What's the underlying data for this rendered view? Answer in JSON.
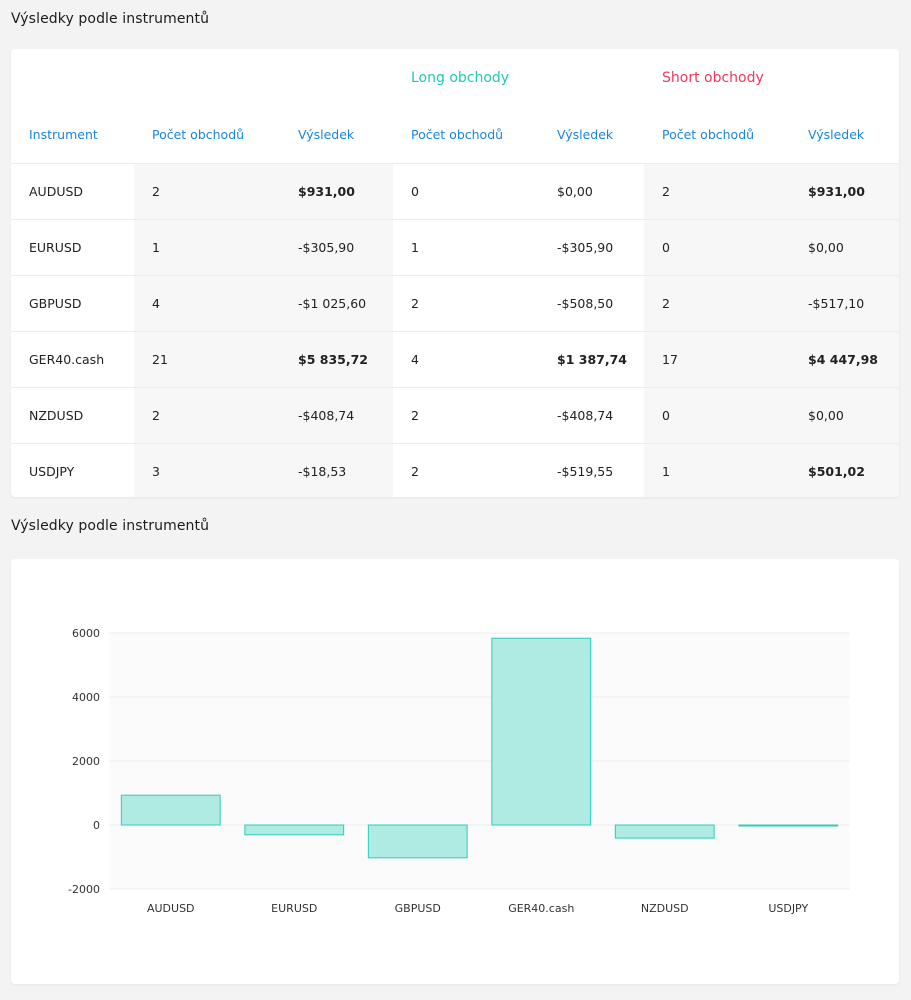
{
  "table_section": {
    "title": "Výsledky podle instrumentů",
    "group_long": "Long obchody",
    "group_short": "Short obchody",
    "headers": [
      "Instrument",
      "Počet obchodů",
      "Výsledek",
      "Počet obchodů",
      "Výsledek",
      "Počet obchodů",
      "Výsledek"
    ],
    "rows": [
      [
        "AUDUSD",
        "2",
        "$931,00",
        "0",
        "$0,00",
        "2",
        "$931,00"
      ],
      [
        "EURUSD",
        "1",
        "-$305,90",
        "1",
        "-$305,90",
        "0",
        "$0,00"
      ],
      [
        "GBPUSD",
        "4",
        "-$1 025,60",
        "2",
        "-$508,50",
        "2",
        "-$517,10"
      ],
      [
        "GER40.cash",
        "21",
        "$5 835,72",
        "4",
        "$1 387,74",
        "17",
        "$4 447,98"
      ],
      [
        "NZDUSD",
        "2",
        "-$408,74",
        "2",
        "-$408,74",
        "0",
        "$0,00"
      ],
      [
        "USDJPY",
        "3",
        "-$18,53",
        "2",
        "-$519,55",
        "1",
        "$501,02"
      ]
    ]
  },
  "chart_section": {
    "title": "Výsledky podle instrumentů"
  },
  "colors": {
    "positive": "#1fc9b1",
    "negative": "#f0385a",
    "header_blue": "#1a85e0",
    "bar_fill": "#b0ebe3",
    "bar_stroke": "#2ccdb9"
  },
  "chart_data": {
    "type": "bar",
    "categories": [
      "AUDUSD",
      "EURUSD",
      "GBPUSD",
      "GER40.cash",
      "NZDUSD",
      "USDJPY"
    ],
    "values": [
      931.0,
      -305.9,
      -1025.6,
      5835.72,
      -408.74,
      -18.53
    ],
    "yticks": [
      6000,
      4000,
      2000,
      0,
      -2000
    ],
    "ylim": [
      -2000,
      6000
    ],
    "title": "",
    "xlabel": "",
    "ylabel": "",
    "grid": true,
    "legend": "none"
  }
}
